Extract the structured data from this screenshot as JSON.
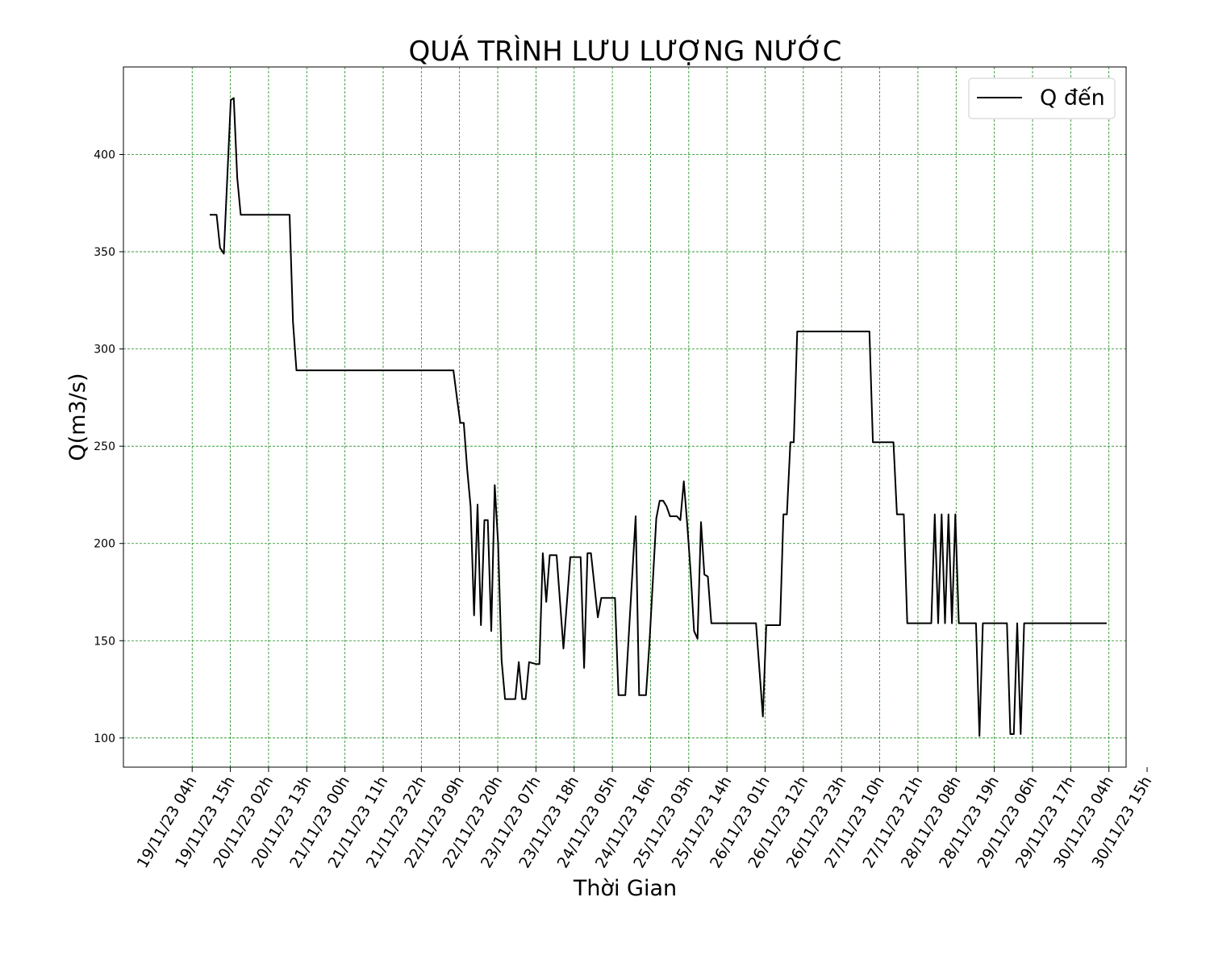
{
  "chart_data": {
    "type": "line",
    "title": "QUÁ TRÌNH LƯU LƯỢNG NƯỚC",
    "xlabel": "Thời Gian",
    "ylabel": "Q(m3/s)",
    "xlim": [
      -18.0,
      244.5
    ],
    "ylim": [
      85,
      445
    ],
    "grid": true,
    "grid_color": "#1a8a1a",
    "line_color": "#000000",
    "legend_position": "top-right",
    "xticks": [
      {
        "x": 0,
        "label": "19/11/23 04h"
      },
      {
        "x": 10,
        "label": "19/11/23 15h"
      },
      {
        "x": 20,
        "label": "20/11/23 02h"
      },
      {
        "x": 30,
        "label": "20/11/23 13h"
      },
      {
        "x": 40,
        "label": "21/11/23 00h"
      },
      {
        "x": 50,
        "label": "21/11/23 11h"
      },
      {
        "x": 60,
        "label": "21/11/23 22h"
      },
      {
        "x": 70,
        "label": "22/11/23 09h"
      },
      {
        "x": 80,
        "label": "22/11/23 20h"
      },
      {
        "x": 90,
        "label": "23/11/23 07h"
      },
      {
        "x": 100,
        "label": "23/11/23 18h"
      },
      {
        "x": 110,
        "label": "24/11/23 05h"
      },
      {
        "x": 120,
        "label": "24/11/23 16h"
      },
      {
        "x": 130,
        "label": "25/11/23 03h"
      },
      {
        "x": 140,
        "label": "25/11/23 14h"
      },
      {
        "x": 150,
        "label": "26/11/23 01h"
      },
      {
        "x": 160,
        "label": "26/11/23 12h"
      },
      {
        "x": 170,
        "label": "26/11/23 23h"
      },
      {
        "x": 180,
        "label": "27/11/23 10h"
      },
      {
        "x": 190,
        "label": "27/11/23 21h"
      },
      {
        "x": 200,
        "label": "28/11/23 08h"
      },
      {
        "x": 210,
        "label": "28/11/23 19h"
      },
      {
        "x": 220,
        "label": "29/11/23 06h"
      },
      {
        "x": 230,
        "label": "29/11/23 17h"
      },
      {
        "x": 240,
        "label": "30/11/23 04h"
      },
      {
        "x": 250,
        "label": "30/11/23 15h"
      }
    ],
    "yticks": [
      100,
      150,
      200,
      250,
      300,
      350,
      400
    ],
    "series": [
      {
        "name": "Q đến",
        "points": [
          [
            4.6,
            369
          ],
          [
            6.4,
            369
          ],
          [
            7.3,
            352
          ],
          [
            8.3,
            349
          ],
          [
            10.1,
            428
          ],
          [
            10.9,
            429
          ],
          [
            11.8,
            388
          ],
          [
            12.7,
            369
          ],
          [
            25.5,
            369
          ],
          [
            26.4,
            314
          ],
          [
            27.3,
            289
          ],
          [
            68.4,
            289
          ],
          [
            69.3,
            275
          ],
          [
            70.2,
            262
          ],
          [
            71.1,
            262
          ],
          [
            72.0,
            238
          ],
          [
            72.9,
            219
          ],
          [
            73.8,
            163
          ],
          [
            74.7,
            220
          ],
          [
            75.6,
            158
          ],
          [
            76.5,
            212
          ],
          [
            77.4,
            212
          ],
          [
            78.3,
            155
          ],
          [
            79.2,
            230
          ],
          [
            80.1,
            200
          ],
          [
            81.0,
            140
          ],
          [
            81.9,
            120
          ],
          [
            84.6,
            120
          ],
          [
            85.5,
            139
          ],
          [
            86.4,
            120
          ],
          [
            87.3,
            120
          ],
          [
            88.2,
            139
          ],
          [
            90.0,
            138
          ],
          [
            90.9,
            138
          ],
          [
            91.8,
            195
          ],
          [
            92.7,
            170
          ],
          [
            93.6,
            194
          ],
          [
            95.4,
            194
          ],
          [
            97.2,
            146
          ],
          [
            99.0,
            193
          ],
          [
            101.7,
            193
          ],
          [
            102.6,
            136
          ],
          [
            103.5,
            195
          ],
          [
            104.4,
            195
          ],
          [
            106.2,
            162
          ],
          [
            107.1,
            172
          ],
          [
            110.7,
            172
          ],
          [
            111.6,
            122
          ],
          [
            113.4,
            122
          ],
          [
            116.1,
            214
          ],
          [
            117.0,
            122
          ],
          [
            118.8,
            122
          ],
          [
            119.7,
            148
          ],
          [
            121.5,
            213
          ],
          [
            122.4,
            222
          ],
          [
            123.3,
            222
          ],
          [
            124.2,
            219
          ],
          [
            125.1,
            214
          ],
          [
            126.9,
            214
          ],
          [
            127.8,
            212
          ],
          [
            128.7,
            232
          ],
          [
            129.6,
            210
          ],
          [
            130.5,
            185
          ],
          [
            131.4,
            155
          ],
          [
            132.3,
            151
          ],
          [
            133.2,
            211
          ],
          [
            134.1,
            184
          ],
          [
            135.0,
            183
          ],
          [
            135.9,
            159
          ],
          [
            142.2,
            159
          ],
          [
            147.6,
            159
          ],
          [
            149.4,
            111
          ],
          [
            150.3,
            158
          ],
          [
            153.9,
            158
          ],
          [
            154.8,
            215
          ],
          [
            155.7,
            215
          ],
          [
            156.6,
            252
          ],
          [
            157.5,
            252
          ],
          [
            158.4,
            309
          ],
          [
            161.1,
            309
          ],
          [
            163.8,
            309
          ],
          [
            167.4,
            309
          ],
          [
            175.5,
            309
          ],
          [
            177.3,
            309
          ],
          [
            178.2,
            252
          ],
          [
            180.9,
            252
          ],
          [
            183.6,
            252
          ],
          [
            184.5,
            215
          ],
          [
            186.3,
            215
          ],
          [
            187.2,
            159
          ],
          [
            189.0,
            159
          ],
          [
            193.5,
            159
          ],
          [
            194.4,
            215
          ],
          [
            195.3,
            159
          ],
          [
            196.2,
            215
          ],
          [
            197.1,
            159
          ],
          [
            198.0,
            215
          ],
          [
            198.9,
            159
          ],
          [
            199.8,
            215
          ],
          [
            200.7,
            159
          ],
          [
            204.3,
            159
          ],
          [
            205.2,
            159
          ],
          [
            206.1,
            101
          ],
          [
            207.0,
            159
          ],
          [
            213.3,
            159
          ],
          [
            214.2,
            102
          ],
          [
            215.1,
            102
          ],
          [
            216.0,
            159
          ],
          [
            216.9,
            102
          ],
          [
            217.8,
            159
          ],
          [
            239.4,
            159
          ]
        ]
      }
    ]
  }
}
